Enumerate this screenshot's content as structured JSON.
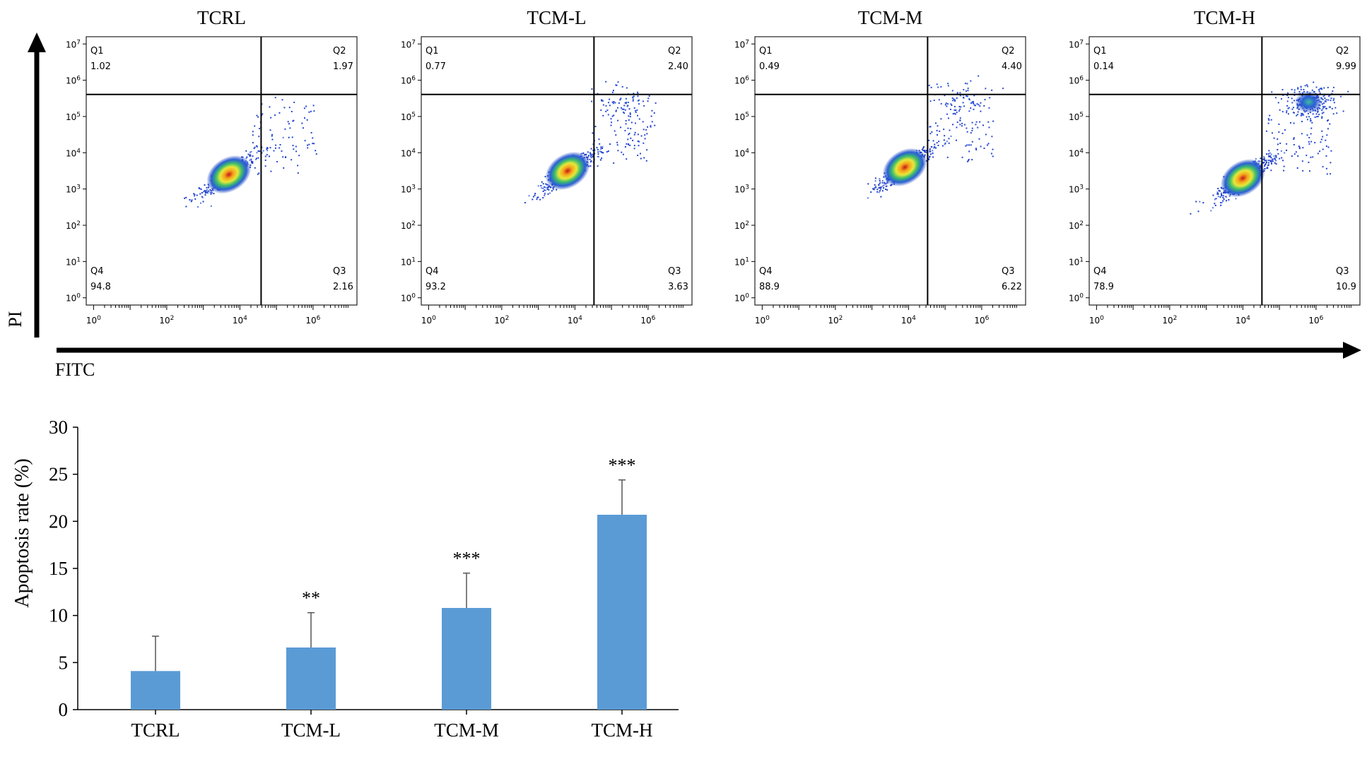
{
  "flow": {
    "y_axis_label": "PI",
    "x_axis_label": "FITC",
    "panels": [
      {
        "title": "TCRL",
        "q1_label": "Q1",
        "q1_value": "1.02",
        "q2_label": "Q2",
        "q2_value": "1.97",
        "q3_label": "Q3",
        "q3_value": "2.16",
        "q4_label": "Q4",
        "q4_value": "94.8",
        "y_ticks": [
          "10^7",
          "10^6",
          "10^5",
          "10^4",
          "10^3",
          "10^2",
          "10^1",
          "10^0"
        ],
        "x_ticks": [
          "10^0",
          "10^2",
          "10^4",
          "10^6"
        ],
        "main_cluster": {
          "x": 3.7,
          "y": 3.4
        },
        "upper_cluster": null
      },
      {
        "title": "TCM-L",
        "q1_label": "Q1",
        "q1_value": "0.77",
        "q2_label": "Q2",
        "q2_value": "2.40",
        "q3_label": "Q3",
        "q3_value": "3.63",
        "q4_label": "Q4",
        "q4_value": "93.2",
        "y_ticks": [
          "10^7",
          "10^6",
          "10^5",
          "10^4",
          "10^3",
          "10^2",
          "10^1",
          "10^0"
        ],
        "x_ticks": [
          "10^0",
          "10^2",
          "10^4",
          "10^6"
        ],
        "main_cluster": {
          "x": 3.8,
          "y": 3.5
        },
        "upper_cluster": {
          "x": 5.3,
          "y": 5.4
        }
      },
      {
        "title": "TCM-M",
        "q1_label": "Q1",
        "q1_value": "0.49",
        "q2_label": "Q2",
        "q2_value": "4.40",
        "q3_label": "Q3",
        "q3_value": "6.22",
        "q4_label": "Q4",
        "q4_value": "88.9",
        "y_ticks": [
          "10^7",
          "10^6",
          "10^5",
          "10^4",
          "10^3",
          "10^2",
          "10^1",
          "10^0"
        ],
        "x_ticks": [
          "10^0",
          "10^2",
          "10^4",
          "10^6"
        ],
        "main_cluster": {
          "x": 3.9,
          "y": 3.6
        },
        "upper_cluster": {
          "x": 5.4,
          "y": 5.5
        }
      },
      {
        "title": "TCM-H",
        "q1_label": "Q1",
        "q1_value": "0.14",
        "q2_label": "Q2",
        "q2_value": "9.99",
        "q3_label": "Q3",
        "q3_value": "10.9",
        "q4_label": "Q4",
        "q4_value": "78.9",
        "y_ticks": [
          "10^7",
          "10^6",
          "10^5",
          "10^4",
          "10^3",
          "10^2",
          "10^1",
          "10^0"
        ],
        "x_ticks": [
          "10^0",
          "10^2",
          "10^4",
          "10^6"
        ],
        "main_cluster": {
          "x": 4.0,
          "y": 3.3
        },
        "upper_cluster": {
          "x": 5.8,
          "y": 5.4
        }
      }
    ]
  },
  "chart_data": {
    "type": "bar",
    "categories": [
      "TCRL",
      "TCM-L",
      "TCM-M",
      "TCM-H"
    ],
    "values": [
      4.1,
      6.6,
      10.8,
      20.7
    ],
    "error": [
      3.7,
      3.7,
      3.7,
      3.7
    ],
    "significance": [
      "",
      "**",
      "***",
      "***"
    ],
    "ylabel": "Apoptosis rate (%)",
    "ylim": [
      0,
      30
    ],
    "yticks": [
      0,
      5,
      10,
      15,
      20,
      25,
      30
    ],
    "grid": false,
    "bar_color": "#5b9bd5"
  }
}
